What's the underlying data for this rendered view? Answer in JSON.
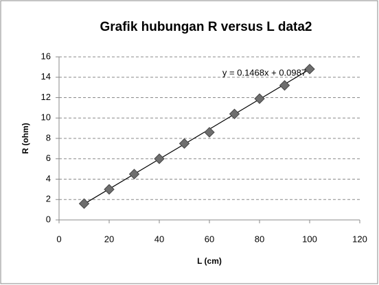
{
  "chart_data": {
    "type": "scatter",
    "title": "Grafik hubungan R versus L data2",
    "x_label": "L (cm)",
    "y_label": "R  (ohm)",
    "x": [
      10,
      20,
      30,
      40,
      50,
      60,
      70,
      80,
      90,
      100
    ],
    "series": [
      {
        "name": "data2",
        "color": "#6e6e6e",
        "values": [
          1.6,
          3.0,
          4.5,
          6.0,
          7.5,
          8.6,
          10.4,
          11.9,
          13.2,
          14.8
        ]
      }
    ],
    "trendline": {
      "slope": 0.1468,
      "intercept": 0.0987,
      "label": "y = 0.1468x + 0.0987"
    },
    "xlim": [
      0,
      120
    ],
    "xticks": [
      0,
      20,
      40,
      60,
      80,
      100,
      120
    ],
    "ylim": [
      0,
      16
    ],
    "yticks": [
      0,
      2,
      4,
      6,
      8,
      10,
      12,
      14,
      16
    ],
    "grid": true
  }
}
